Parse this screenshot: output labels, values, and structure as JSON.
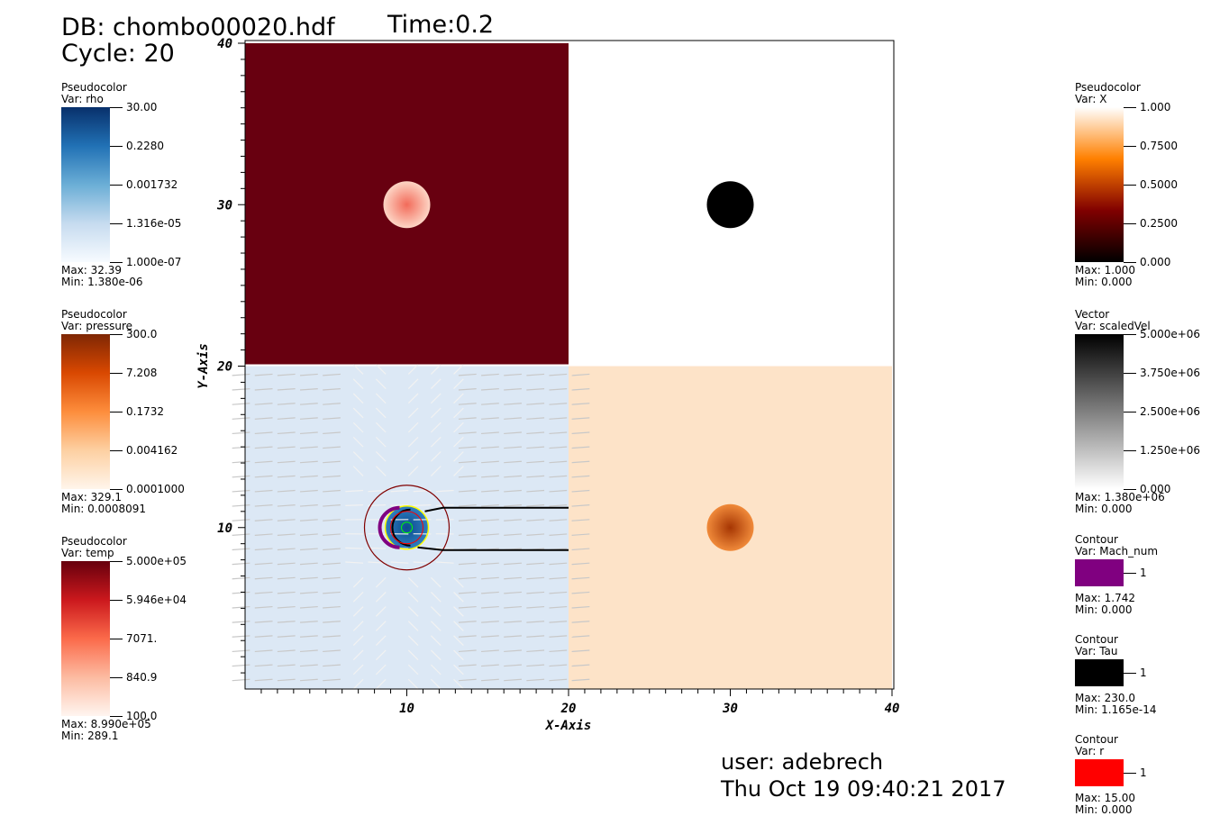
{
  "header": {
    "db": "DB: chombo00020.hdf",
    "cycle": "Cycle: 20",
    "time": "Time:0.2"
  },
  "footer": {
    "user": "user: adebrech",
    "date": "Thu Oct 19 09:40:21 2017"
  },
  "legends_left": [
    {
      "type": "Pseudocolor",
      "var": "Var: rho",
      "ticks": [
        "30.00",
        "0.2280",
        "0.001732",
        "1.316e-05",
        "1.000e-07"
      ],
      "max": "Max:  32.39",
      "min": "Min:  1.380e-06",
      "colors": [
        "#08306b",
        "#2171b5",
        "#6baed6",
        "#c6dbef",
        "#f7fbff"
      ]
    },
    {
      "type": "Pseudocolor",
      "var": "Var: pressure",
      "ticks": [
        "300.0",
        "7.208",
        "0.1732",
        "0.004162",
        "0.0001000"
      ],
      "max": "Max:  329.1",
      "min": "Min:  0.0008091",
      "colors": [
        "#7f2704",
        "#d94801",
        "#fd8d3c",
        "#fdd0a2",
        "#fff5eb"
      ]
    },
    {
      "type": "Pseudocolor",
      "var": "Var: temp",
      "ticks": [
        "5.000e+05",
        "5.946e+04",
        "7071.",
        "840.9",
        "100.0"
      ],
      "max": "Max:  8.990e+05",
      "min": "Min:  289.1",
      "colors": [
        "#67000d",
        "#cb181d",
        "#fb6a4a",
        "#fcbba1",
        "#fff5f0"
      ]
    }
  ],
  "legends_right": [
    {
      "type": "Pseudocolor",
      "var": "Var: X",
      "ticks": [
        "1.000",
        "0.7500",
        "0.5000",
        "0.2500",
        "0.000"
      ],
      "max": "Max:  1.000",
      "min": "Min:  0.000",
      "colors": [
        "#ffffff",
        "#ff8000",
        "#800000",
        "#000000"
      ]
    },
    {
      "type": "Vector",
      "var": "Var: scaledVel",
      "ticks": [
        "5.000e+06",
        "3.750e+06",
        "2.500e+06",
        "1.250e+06",
        "0.000"
      ],
      "max": "Max:  1.380e+06",
      "min": "Min:  0.000",
      "colors": [
        "#000000",
        "#ffffff"
      ]
    }
  ],
  "contours": [
    {
      "type": "Contour",
      "var": "Var: Mach_num",
      "level": "1",
      "max": "Max:  1.742",
      "min": "Min:  0.000",
      "color": "#800080"
    },
    {
      "type": "Contour",
      "var": "Var: Tau",
      "level": "1",
      "max": "Max:  230.0",
      "min": "Min:  1.165e-14",
      "color": "#000000"
    },
    {
      "type": "Contour",
      "var": "Var: r",
      "level": "1",
      "max": "Max:  15.00",
      "min": "Min:  0.000",
      "color": "#ff0000"
    }
  ],
  "chart_data": {
    "type": "heatmap",
    "xlabel": "X-Axis",
    "ylabel": "Y-Axis",
    "xlim": [
      0,
      40
    ],
    "ylim": [
      0,
      40
    ],
    "xticks": [
      "10",
      "20",
      "30",
      "40"
    ],
    "yticks": [
      "10",
      "20",
      "30",
      "40"
    ],
    "panels": [
      {
        "var": "temp",
        "region": "top-left",
        "background": "#680010",
        "blob_center": [
          10,
          30
        ],
        "blob_color": "#f26b5a"
      },
      {
        "var": "X",
        "region": "top-right",
        "background": "#ffffff",
        "blob_center": [
          30,
          30
        ],
        "blob_color": "#000000"
      },
      {
        "var": "rho",
        "region": "bottom-left",
        "background": "#dce8f5",
        "blob_center": [
          10,
          10
        ],
        "blob_color": "#0b4a8e"
      },
      {
        "var": "pressure",
        "region": "bottom-right",
        "background": "#fde3c8",
        "blob_center": [
          30,
          10
        ],
        "blob_color": "#a63603"
      }
    ]
  }
}
